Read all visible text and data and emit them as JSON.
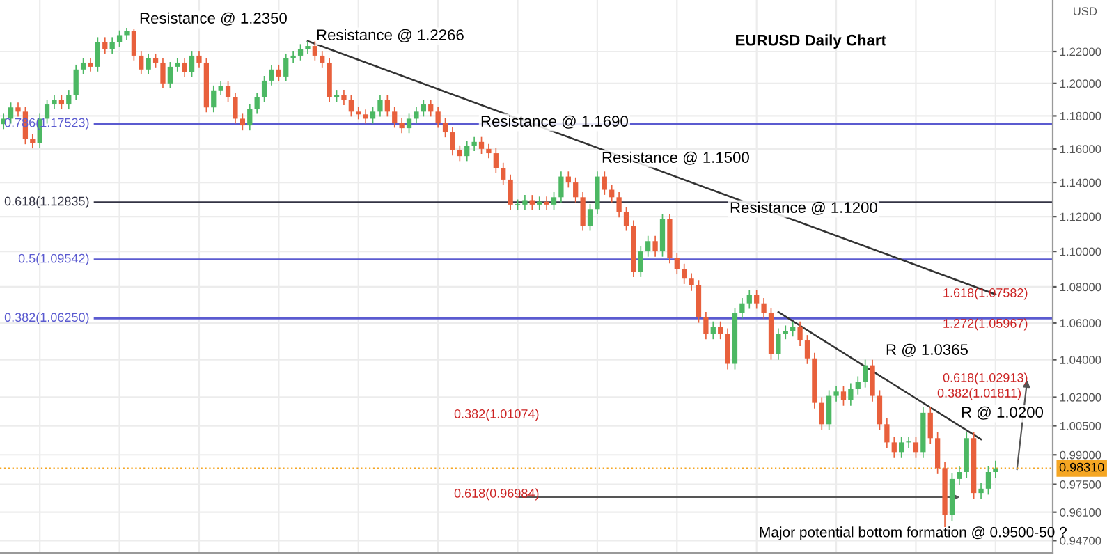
{
  "chart_data": {
    "type": "candlestick",
    "title": "EURUSD Daily Chart",
    "ylabel": "USD",
    "log": true,
    "grid": true,
    "tick_labels": "y",
    "categories": [
      null,
      null,
      null,
      null,
      null,
      null,
      null,
      null,
      null,
      null,
      null,
      null,
      null,
      null,
      null,
      null,
      null,
      null,
      null,
      null,
      null,
      null,
      null,
      null,
      null,
      null,
      null,
      null,
      null,
      null,
      null,
      null,
      null,
      null,
      null,
      null,
      null,
      null,
      null,
      null,
      null,
      null,
      null,
      null,
      null,
      null,
      null,
      null,
      null,
      null,
      null,
      null,
      null,
      null,
      null,
      null,
      null,
      null,
      null,
      null,
      null,
      null,
      null,
      null,
      null,
      null,
      null,
      null,
      null,
      null,
      null,
      null,
      null,
      null,
      null,
      null,
      null,
      null,
      null,
      null,
      null,
      null,
      null,
      null,
      null,
      null,
      null,
      null,
      null,
      null,
      null,
      null,
      null,
      null,
      null,
      null,
      null,
      null,
      null,
      null,
      null,
      null,
      null,
      null,
      null,
      null,
      null,
      null,
      null,
      null,
      null,
      null,
      null,
      null,
      null,
      null,
      null,
      null,
      null,
      null,
      null,
      null,
      null,
      null,
      null,
      null,
      null,
      null,
      null,
      null,
      null,
      null,
      null,
      null,
      null,
      null,
      null,
      null
    ],
    "ohlc": [
      [
        1.175,
        1.1813,
        1.172,
        1.1783
      ],
      [
        1.1783,
        1.1882,
        1.1753,
        1.1852
      ],
      [
        1.1852,
        1.1882,
        1.1796,
        1.1826
      ],
      [
        1.1826,
        1.1856,
        1.1628,
        1.1658
      ],
      [
        1.1658,
        1.1688,
        1.1603,
        1.1633
      ],
      [
        1.1633,
        1.1813,
        1.1603,
        1.1783
      ],
      [
        1.1783,
        1.19,
        1.1753,
        1.187
      ],
      [
        1.187,
        1.1926,
        1.184,
        1.1896
      ],
      [
        1.1896,
        1.1926,
        1.184,
        1.187
      ],
      [
        1.187,
        1.196,
        1.184,
        1.193
      ],
      [
        1.193,
        1.2117,
        1.19,
        1.2087
      ],
      [
        1.2087,
        1.216,
        1.2057,
        1.213
      ],
      [
        1.213,
        1.216,
        1.2074,
        1.2104
      ],
      [
        1.2104,
        1.2291,
        1.2074,
        1.2261
      ],
      [
        1.2261,
        1.2291,
        1.2187,
        1.2217
      ],
      [
        1.2217,
        1.2291,
        1.2187,
        1.2261
      ],
      [
        1.2261,
        1.2334,
        1.2231,
        1.2304
      ],
      [
        1.2304,
        1.235,
        1.2274,
        1.2331
      ],
      [
        1.2331,
        1.2345,
        1.2144,
        1.2174
      ],
      [
        1.2174,
        1.2204,
        1.2057,
        1.2087
      ],
      [
        1.2087,
        1.2187,
        1.2057,
        1.2157
      ],
      [
        1.2157,
        1.2187,
        1.21,
        1.213
      ],
      [
        1.213,
        1.216,
        1.197,
        1.2
      ],
      [
        1.2,
        1.2134,
        1.197,
        1.2104
      ],
      [
        1.2104,
        1.216,
        1.2074,
        1.213
      ],
      [
        1.213,
        1.216,
        1.204,
        1.207
      ],
      [
        1.207,
        1.2204,
        1.204,
        1.2174
      ],
      [
        1.2174,
        1.2204,
        1.21,
        1.213
      ],
      [
        1.213,
        1.216,
        1.1822,
        1.1852
      ],
      [
        1.1852,
        1.1987,
        1.1822,
        1.1957
      ],
      [
        1.1957,
        1.2013,
        1.1927,
        1.1983
      ],
      [
        1.1983,
        1.2013,
        1.1883,
        1.1913
      ],
      [
        1.1913,
        1.1943,
        1.1753,
        1.1783
      ],
      [
        1.1783,
        1.1813,
        1.1712,
        1.1742
      ],
      [
        1.1742,
        1.1873,
        1.1712,
        1.1843
      ],
      [
        1.1843,
        1.1943,
        1.1813,
        1.1913
      ],
      [
        1.1913,
        1.2047,
        1.1883,
        1.2017
      ],
      [
        1.2017,
        1.2117,
        1.1987,
        1.2087
      ],
      [
        1.2087,
        1.2117,
        1.2013,
        1.2043
      ],
      [
        1.2043,
        1.2187,
        1.2013,
        1.2157
      ],
      [
        1.2157,
        1.2204,
        1.2127,
        1.2174
      ],
      [
        1.2174,
        1.2247,
        1.2144,
        1.2217
      ],
      [
        1.2217,
        1.2266,
        1.2187,
        1.2235
      ],
      [
        1.2235,
        1.2265,
        1.2144,
        1.2174
      ],
      [
        1.2174,
        1.2204,
        1.21,
        1.213
      ],
      [
        1.213,
        1.216,
        1.1883,
        1.1913
      ],
      [
        1.1913,
        1.196,
        1.1883,
        1.193
      ],
      [
        1.193,
        1.196,
        1.1866,
        1.1896
      ],
      [
        1.1896,
        1.1926,
        1.1796,
        1.1826
      ],
      [
        1.1826,
        1.1856,
        1.1779,
        1.1809
      ],
      [
        1.1809,
        1.1839,
        1.1753,
        1.1783
      ],
      [
        1.1783,
        1.1856,
        1.1753,
        1.1826
      ],
      [
        1.1826,
        1.1926,
        1.1796,
        1.1896
      ],
      [
        1.1896,
        1.1926,
        1.1796,
        1.1826
      ],
      [
        1.1826,
        1.1856,
        1.1728,
        1.1758
      ],
      [
        1.1758,
        1.1788,
        1.1695,
        1.1725
      ],
      [
        1.1725,
        1.1813,
        1.1695,
        1.1783
      ],
      [
        1.1783,
        1.1856,
        1.1753,
        1.1826
      ],
      [
        1.1826,
        1.19,
        1.1796,
        1.187
      ],
      [
        1.187,
        1.19,
        1.1796,
        1.1826
      ],
      [
        1.1826,
        1.1856,
        1.1728,
        1.1758
      ],
      [
        1.1758,
        1.1788,
        1.167,
        1.17
      ],
      [
        1.17,
        1.173,
        1.1561,
        1.1591
      ],
      [
        1.1591,
        1.1621,
        1.1527,
        1.1557
      ],
      [
        1.1557,
        1.1647,
        1.1527,
        1.1617
      ],
      [
        1.1617,
        1.1672,
        1.1587,
        1.1642
      ],
      [
        1.1642,
        1.1672,
        1.157,
        1.16
      ],
      [
        1.16,
        1.163,
        1.1544,
        1.1574
      ],
      [
        1.1574,
        1.1604,
        1.1457,
        1.1487
      ],
      [
        1.1487,
        1.1517,
        1.1387,
        1.1417
      ],
      [
        1.1417,
        1.1447,
        1.124,
        1.127
      ],
      [
        1.127,
        1.13,
        1.124,
        1.127
      ],
      [
        1.127,
        1.1326,
        1.124,
        1.1296
      ],
      [
        1.1296,
        1.1326,
        1.124,
        1.127
      ],
      [
        1.127,
        1.1317,
        1.124,
        1.1287
      ],
      [
        1.1287,
        1.1317,
        1.124,
        1.127
      ],
      [
        1.127,
        1.1343,
        1.124,
        1.1313
      ],
      [
        1.1313,
        1.1465,
        1.1283,
        1.1435
      ],
      [
        1.1435,
        1.1465,
        1.137,
        1.14
      ],
      [
        1.14,
        1.143,
        1.1283,
        1.1313
      ],
      [
        1.1313,
        1.1343,
        1.1118,
        1.1148
      ],
      [
        1.1148,
        1.1274,
        1.1118,
        1.1244
      ],
      [
        1.1244,
        1.1465,
        1.1214,
        1.1435
      ],
      [
        1.1435,
        1.1465,
        1.1327,
        1.1357
      ],
      [
        1.1357,
        1.1387,
        1.1283,
        1.1313
      ],
      [
        1.1313,
        1.1343,
        1.1196,
        1.1226
      ],
      [
        1.1226,
        1.1256,
        1.1118,
        1.1148
      ],
      [
        1.1148,
        1.1178,
        1.0855,
        1.0885
      ],
      [
        1.0885,
        1.103,
        1.0855,
        1.1
      ],
      [
        1.1,
        1.1089,
        1.097,
        1.1059
      ],
      [
        1.1059,
        1.1089,
        1.097,
        1.1
      ],
      [
        1.1,
        1.1215,
        1.097,
        1.1185
      ],
      [
        1.1185,
        1.1215,
        1.0932,
        1.0962
      ],
      [
        1.0962,
        1.0992,
        1.087,
        1.09
      ],
      [
        1.09,
        1.093,
        1.0816,
        1.0846
      ],
      [
        1.0846,
        1.0876,
        1.0778,
        1.0808
      ],
      [
        1.0808,
        1.0838,
        1.0601,
        1.0631
      ],
      [
        1.0631,
        1.0661,
        1.0511,
        1.0541
      ],
      [
        1.0541,
        1.0608,
        1.0511,
        1.0578
      ],
      [
        1.0578,
        1.0608,
        1.0511,
        1.0541
      ],
      [
        1.0541,
        1.0571,
        1.0348,
        1.0378
      ],
      [
        1.0378,
        1.0684,
        1.0348,
        1.0654
      ],
      [
        1.0654,
        1.0738,
        1.0624,
        1.0708
      ],
      [
        1.0708,
        1.0784,
        1.0678,
        1.0754
      ],
      [
        1.0754,
        1.0784,
        1.0678,
        1.0708
      ],
      [
        1.0708,
        1.0738,
        1.0624,
        1.0654
      ],
      [
        1.0654,
        1.0684,
        1.04,
        1.043
      ],
      [
        1.043,
        1.0571,
        1.04,
        1.0541
      ],
      [
        1.0541,
        1.0586,
        1.0511,
        1.0556
      ],
      [
        1.0556,
        1.0608,
        1.0526,
        1.0578
      ],
      [
        1.0578,
        1.0608,
        1.0474,
        1.0504
      ],
      [
        1.0504,
        1.0534,
        1.0377,
        1.0407
      ],
      [
        1.0407,
        1.0437,
        1.014,
        1.017
      ],
      [
        1.017,
        1.02,
        1.0028,
        1.0058
      ],
      [
        1.0058,
        1.0237,
        1.0028,
        1.0207
      ],
      [
        1.0207,
        1.026,
        1.0177,
        1.023
      ],
      [
        1.023,
        1.026,
        1.0155,
        1.0185
      ],
      [
        1.0185,
        1.0274,
        1.0155,
        1.0244
      ],
      [
        1.0244,
        1.0311,
        1.0214,
        1.0281
      ],
      [
        1.0281,
        1.04,
        1.0251,
        1.037
      ],
      [
        1.037,
        1.04,
        1.0177,
        1.0207
      ],
      [
        1.0207,
        1.0237,
        1.0028,
        1.0058
      ],
      [
        1.0058,
        1.0088,
        0.9934,
        0.9964
      ],
      [
        0.9964,
        0.9994,
        0.9884,
        0.9914
      ],
      [
        0.9914,
        0.9994,
        0.9884,
        0.9964
      ],
      [
        0.9964,
        0.9994,
        0.9934,
        0.9964
      ],
      [
        0.9964,
        0.9994,
        0.9884,
        0.9914
      ],
      [
        0.9914,
        1.0148,
        0.9884,
        1.0118
      ],
      [
        1.0118,
        1.0148,
        0.9956,
        0.9986
      ],
      [
        0.9986,
        1.0016,
        0.9802,
        0.9832
      ],
      [
        0.9832,
        0.9862,
        0.9536,
        0.9596
      ],
      [
        0.9596,
        0.9807,
        0.9566,
        0.9777
      ],
      [
        0.9777,
        0.9842,
        0.9747,
        0.9812
      ],
      [
        0.9812,
        1.0016,
        0.9782,
        0.9986
      ],
      [
        0.9986,
        1.0016,
        0.9676,
        0.9706
      ],
      [
        0.9706,
        0.9758,
        0.9676,
        0.9728
      ],
      [
        0.9728,
        0.9842,
        0.9698,
        0.9812
      ],
      [
        0.9812,
        0.987,
        0.9782,
        0.9831
      ]
    ],
    "series": [
      {
        "type": "line",
        "color": "#333333",
        "values": [
          null,
          null,
          null,
          null,
          null,
          null,
          null,
          null,
          null,
          null,
          null,
          null,
          null,
          null,
          null,
          null,
          null,
          null,
          null,
          null,
          null,
          null,
          null,
          null,
          null,
          null,
          null,
          null,
          null,
          null,
          null,
          null,
          null,
          null,
          null,
          null,
          null,
          null,
          null,
          null,
          null,
          null,
          1.2266,
          null,
          null,
          null,
          null,
          null,
          null,
          null,
          null,
          null,
          null,
          null,
          null,
          null,
          null,
          null,
          null,
          null,
          null,
          null,
          null,
          null,
          null,
          null,
          null,
          null,
          null,
          null,
          null,
          null,
          null,
          null,
          null,
          null,
          null,
          null,
          null,
          null,
          null,
          null,
          null,
          null,
          null,
          null,
          null,
          null,
          null,
          null,
          null,
          null,
          null,
          null,
          null,
          null,
          null,
          null,
          null,
          null,
          null,
          null,
          null,
          null,
          null,
          null,
          null,
          null,
          null,
          null,
          null,
          null,
          null,
          null,
          null,
          null,
          null,
          null,
          null,
          null,
          null,
          null,
          null,
          null,
          null,
          null,
          null,
          null,
          null,
          null,
          null,
          null,
          null,
          null,
          null,
          null,
          null,
          1.0758
        ]
      },
      {
        "type": "line",
        "color": "#333333",
        "values": [
          null,
          null,
          null,
          null,
          null,
          null,
          null,
          null,
          null,
          null,
          null,
          null,
          null,
          null,
          null,
          null,
          null,
          null,
          null,
          null,
          null,
          null,
          null,
          null,
          null,
          null,
          null,
          null,
          null,
          null,
          null,
          null,
          null,
          null,
          null,
          null,
          null,
          null,
          null,
          null,
          null,
          null,
          null,
          null,
          null,
          null,
          null,
          null,
          null,
          null,
          null,
          null,
          null,
          null,
          null,
          null,
          null,
          null,
          null,
          null,
          null,
          null,
          null,
          null,
          null,
          null,
          null,
          null,
          null,
          null,
          null,
          null,
          null,
          null,
          null,
          null,
          null,
          null,
          null,
          null,
          null,
          null,
          null,
          null,
          null,
          null,
          null,
          null,
          null,
          null,
          null,
          null,
          null,
          null,
          null,
          null,
          null,
          null,
          null,
          null,
          null,
          null,
          null,
          null,
          null,
          null,
          null,
          1.066,
          null,
          null,
          null,
          null,
          null,
          null,
          null,
          null,
          null,
          null,
          null,
          null,
          null,
          null,
          null,
          null,
          null,
          null,
          null,
          null,
          null,
          null,
          null,
          null,
          null,
          null,
          null,
          0.998,
          null,
          null
        ]
      }
    ],
    "ylim": [
      0.941,
      1.253
    ],
    "yticks": [
      {
        "value": 1.22,
        "label": "1.22000"
      },
      {
        "value": 1.2,
        "label": "1.20000"
      },
      {
        "value": 1.18,
        "label": "1.18000"
      },
      {
        "value": 1.16,
        "label": "1.16000"
      },
      {
        "value": 1.14,
        "label": "1.14000"
      },
      {
        "value": 1.12,
        "label": "1.12000"
      },
      {
        "value": 1.1,
        "label": "1.10000"
      },
      {
        "value": 1.08,
        "label": "1.08000"
      },
      {
        "value": 1.06,
        "label": "1.06000"
      },
      {
        "value": 1.04,
        "label": "1.04000"
      },
      {
        "value": 1.02,
        "label": "1.02000"
      },
      {
        "value": 1.005,
        "label": "1.00500"
      },
      {
        "value": 0.99,
        "label": "0.99000"
      },
      {
        "value": 0.975,
        "label": "0.97500"
      },
      {
        "value": 0.961,
        "label": "0.96100"
      },
      {
        "value": 0.947,
        "label": "0.94700"
      }
    ],
    "ref_lines": [
      {
        "axis": "y",
        "value": 1.17523,
        "label": "0.786(1.17523)",
        "color": "#5b5bd0"
      },
      {
        "axis": "y",
        "value": 1.12835,
        "label": "0.618(1.12835)",
        "color": "#333344"
      },
      {
        "axis": "y",
        "value": 1.09542,
        "label": "0.5(1.09542)",
        "color": "#5b5bd0"
      },
      {
        "axis": "y",
        "value": 1.0625,
        "label": "0.382(1.06250)",
        "color": "#5b5bd0"
      },
      {
        "axis": "y",
        "value": 0.9831,
        "label": "0.98310",
        "color": "#f5a623",
        "line_style": "dotted"
      }
    ],
    "annotations": [
      "Resistance @ 1.2350",
      "Resistance @ 1.2266",
      "Resistance @ 1.1690",
      "Resistance @ 1.1500",
      "Resistance @ 1.1200",
      "R @ 1.0365",
      "R @ 1.0200",
      "1.618(1.07582)",
      "1.272(1.05967)",
      "0.618(1.02913)",
      "0.382(1.01811)",
      "0.382(1.01074)",
      "0.618(0.96984)",
      "Major potential bottom formation @ 0.9500-50 ?"
    ]
  }
}
